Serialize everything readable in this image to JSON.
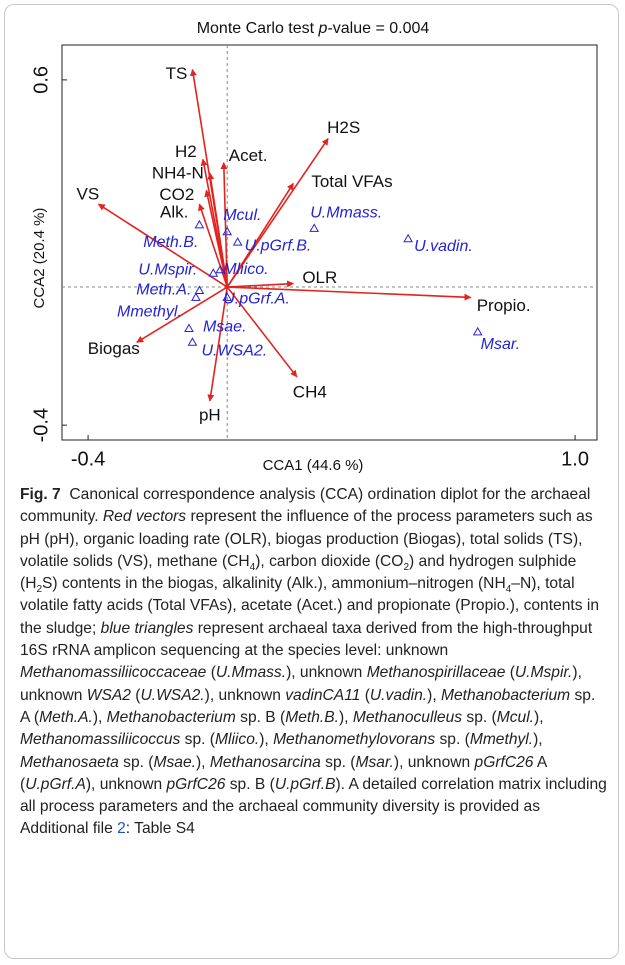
{
  "chart_data": {
    "type": "biplot",
    "title": [
      {
        "text": "Monte Carlo test "
      },
      {
        "text": "p",
        "style": "italic"
      },
      {
        "text": "-value = 0.004"
      }
    ],
    "x_label": "CCA1 (44.6 %)",
    "y_label": "CCA2 (20.4 %)",
    "xlim": [
      -0.475,
      1.063
    ],
    "ylim": [
      -0.443,
      0.701
    ],
    "xticks": [
      -0.4,
      {
        "value": 1,
        "label": "1.0"
      }
    ],
    "yticks": [
      -0.4,
      0.6
    ],
    "vectors": {
      "color": "#e3231e",
      "labels": [
        "TS",
        "H2",
        "NH4-N",
        "CO2",
        "Alk.",
        "Acet.",
        "H2S",
        "Total VFAs",
        "VS",
        "OLR",
        "Propio.",
        "CH4",
        "pH",
        "Biogas"
      ],
      "x": [
        -0.1,
        -0.07,
        -0.05,
        -0.06,
        -0.08,
        -0.01,
        0.29,
        0.19,
        -0.37,
        0.19,
        0.7,
        0.2,
        -0.05,
        -0.26
      ],
      "y": [
        0.63,
        0.37,
        0.33,
        0.28,
        0.24,
        0.36,
        0.43,
        0.3,
        0.24,
        0.01,
        -0.03,
        -0.26,
        -0.33,
        -0.16
      ]
    },
    "points": {
      "color": "#2323d6",
      "labels": [
        "Mcul.",
        "U.Mmass.",
        "U.vadin.",
        "Meth.B.",
        "U.pGrf.B.",
        "Mliico.",
        "U.Mspir.",
        "Meth.A.",
        "Mmethyl.",
        "U.pGrf.A.",
        "Msae.",
        "U.WSA2.",
        "Msar."
      ],
      "x": [
        0,
        0.25,
        0.52,
        -0.08,
        0.03,
        -0.02,
        -0.04,
        -0.08,
        -0.09,
        0,
        -0.11,
        -0.1,
        0.72
      ],
      "y": [
        0.16,
        0.17,
        0.14,
        0.18,
        0.13,
        0.05,
        0.04,
        -0.01,
        -0.03,
        -0.03,
        -0.12,
        -0.16,
        -0.13
      ]
    }
  },
  "caption": {
    "runs": [
      {
        "text": "Fig. 7",
        "style": "bold"
      },
      {
        "text": "  Canonical correspondence analysis (CCA) ordination diplot for the archaeal community. "
      },
      {
        "text": "Red vectors",
        "style": "italic"
      },
      {
        "text": " represent the influence of the process parameters such as pH (pH), organic loading rate (OLR), biogas production (Biogas), total solids (TS), volatile solids (VS), methane (CH"
      },
      {
        "text": "4",
        "style": "sub"
      },
      {
        "text": "), carbon dioxide (CO"
      },
      {
        "text": "2",
        "style": "sub"
      },
      {
        "text": ") and hydrogen sulphide (H"
      },
      {
        "text": "2",
        "style": "sub"
      },
      {
        "text": "S) contents in the biogas, alkalinity (Alk.), ammonium–nitrogen (NH"
      },
      {
        "text": "4",
        "style": "sub"
      },
      {
        "text": "–N), total volatile fatty acids (Total VFAs), acetate (Acet.) and propionate (Propio.), contents in the sludge; "
      },
      {
        "text": "blue triangles",
        "style": "italic"
      },
      {
        "text": " represent archaeal taxa derived from the high-throughput 16S rRNA amplicon sequencing at the species level: unknown "
      },
      {
        "text": "Methanomassiliicoccaceae",
        "style": "italic"
      },
      {
        "text": " ("
      },
      {
        "text": "U.Mmass.",
        "style": "italic"
      },
      {
        "text": "), unknown "
      },
      {
        "text": "Methanospirillaceae",
        "style": "italic"
      },
      {
        "text": " ("
      },
      {
        "text": "U.Mspir.",
        "style": "italic"
      },
      {
        "text": "), unknown "
      },
      {
        "text": "WSA2",
        "style": "italic"
      },
      {
        "text": " ("
      },
      {
        "text": "U.WSA2.",
        "style": "italic"
      },
      {
        "text": "), unknown "
      },
      {
        "text": "vadinCA11",
        "style": "italic"
      },
      {
        "text": " ("
      },
      {
        "text": "U.vadin.",
        "style": "italic"
      },
      {
        "text": "), "
      },
      {
        "text": "Methanobacterium",
        "style": "italic"
      },
      {
        "text": " sp. A ("
      },
      {
        "text": "Meth.A.",
        "style": "italic"
      },
      {
        "text": "), "
      },
      {
        "text": "Methanobacterium",
        "style": "italic"
      },
      {
        "text": " sp. B ("
      },
      {
        "text": "Meth.B.",
        "style": "italic"
      },
      {
        "text": "), "
      },
      {
        "text": "Methanoculleus",
        "style": "italic"
      },
      {
        "text": " sp. ("
      },
      {
        "text": "Mcul.",
        "style": "italic"
      },
      {
        "text": "), "
      },
      {
        "text": "Methanomassiliicoccus",
        "style": "italic"
      },
      {
        "text": " sp. ("
      },
      {
        "text": "Mliico.",
        "style": "italic"
      },
      {
        "text": "), "
      },
      {
        "text": "Methanomethylovorans",
        "style": "italic"
      },
      {
        "text": " sp. ("
      },
      {
        "text": "Mmethyl.",
        "style": "italic"
      },
      {
        "text": "), "
      },
      {
        "text": "Methanosaeta",
        "style": "italic"
      },
      {
        "text": " sp. ("
      },
      {
        "text": "Msae.",
        "style": "italic"
      },
      {
        "text": "), "
      },
      {
        "text": "Methanosarcina",
        "style": "italic"
      },
      {
        "text": " sp. ("
      },
      {
        "text": "Msar.",
        "style": "italic"
      },
      {
        "text": "), unknown "
      },
      {
        "text": "pGrfC26",
        "style": "italic"
      },
      {
        "text": " A ("
      },
      {
        "text": "U.pGrf.A",
        "style": "italic"
      },
      {
        "text": "), unknown "
      },
      {
        "text": "pGrfC26",
        "style": "italic"
      },
      {
        "text": " sp. B ("
      },
      {
        "text": "U.pGrf.B",
        "style": "italic"
      },
      {
        "text": "). A detailed correlation matrix including all process parameters and the archaeal community diversity is provided as Additional file "
      },
      {
        "text": "2",
        "style": "link"
      },
      {
        "text": ": Table S4"
      }
    ]
  }
}
